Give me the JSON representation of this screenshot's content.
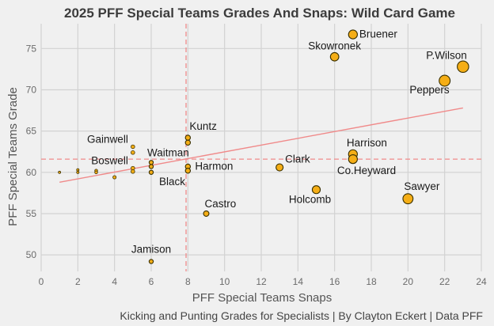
{
  "chart_data": {
    "type": "scatter",
    "title": "2025 PFF Special Teams Grades And Snaps: Wild Card Game",
    "xlabel": "PFF Special Teams Snaps",
    "ylabel": "PFF Special Teams Grade",
    "caption": "Kicking and Punting Grades for Specialists | By Clayton Eckert | Data PFF",
    "xlim": [
      0,
      24
    ],
    "ylim": [
      48,
      78
    ],
    "x_ticks": [
      0,
      2,
      4,
      6,
      8,
      10,
      12,
      14,
      16,
      18,
      20,
      22,
      24
    ],
    "y_ticks": [
      50,
      55,
      60,
      65,
      70,
      75
    ],
    "grid": true,
    "reference_lines": {
      "x": 7.9,
      "y": 61.6
    },
    "trend_line": {
      "x": [
        1,
        23
      ],
      "y": [
        58.8,
        67.8
      ]
    },
    "colors": {
      "background": "#f0f0f0",
      "grid": "#d2d2d2",
      "point_fill": "#f5ae16",
      "point_stroke": "#3a3000",
      "reference": "#f08a8a",
      "trend": "#f08a8a"
    },
    "points": [
      {
        "name": "Bruener",
        "x": 17,
        "y": 76.7,
        "label": "Bruener",
        "anchor": "start",
        "dx": 8,
        "dy": 4
      },
      {
        "name": "Skowronek",
        "x": 16,
        "y": 74.0,
        "label": "Skowronek",
        "anchor": "middle",
        "dx": 0,
        "dy": -9
      },
      {
        "name": "P.Wilson",
        "x": 23,
        "y": 72.8,
        "label": "P.Wilson",
        "anchor": "end",
        "dx": 5,
        "dy": -10
      },
      {
        "name": "Peppers",
        "x": 22,
        "y": 71.1,
        "label": "Peppers",
        "anchor": "end",
        "dx": 6,
        "dy": 16
      },
      {
        "name": "Kuntz",
        "x": 8,
        "y": 64.2,
        "label": "Kuntz",
        "anchor": "start",
        "dx": 2,
        "dy": -10
      },
      {
        "name": "Kuntz-2",
        "x": 8,
        "y": 63.6,
        "label": ""
      },
      {
        "name": "Gainwell",
        "x": 5,
        "y": 63.1,
        "label": "Gainwell",
        "anchor": "end",
        "dx": -6,
        "dy": -5
      },
      {
        "name": "Gainwell-2",
        "x": 5,
        "y": 62.4,
        "label": ""
      },
      {
        "name": "Waitman",
        "x": 6,
        "y": 61.2,
        "label": "Waitman",
        "anchor": "start",
        "dx": -5,
        "dy": -8
      },
      {
        "name": "Waitman-2",
        "x": 6,
        "y": 60.7,
        "label": ""
      },
      {
        "name": "Black",
        "x": 6,
        "y": 60.0,
        "label": "Black",
        "anchor": "start",
        "dx": 10,
        "dy": 16
      },
      {
        "name": "Harmon",
        "x": 8,
        "y": 60.7,
        "label": "Harmon",
        "anchor": "start",
        "dx": 9,
        "dy": 4
      },
      {
        "name": "Harmon-2",
        "x": 8,
        "y": 60.2,
        "label": ""
      },
      {
        "name": "Boswell",
        "x": 5,
        "y": 60.5,
        "label": "Boswell",
        "anchor": "end",
        "dx": -6,
        "dy": -5
      },
      {
        "name": "Boswell-2",
        "x": 5,
        "y": 60.1,
        "label": ""
      },
      {
        "name": "p-3-a",
        "x": 3,
        "y": 60.2,
        "label": ""
      },
      {
        "name": "p-3-b",
        "x": 3,
        "y": 60.0,
        "label": ""
      },
      {
        "name": "p-2-a",
        "x": 2,
        "y": 60.3,
        "label": ""
      },
      {
        "name": "p-2-b",
        "x": 2,
        "y": 60.0,
        "label": ""
      },
      {
        "name": "p-1",
        "x": 1,
        "y": 60.0,
        "label": ""
      },
      {
        "name": "p-4",
        "x": 4,
        "y": 59.4,
        "label": ""
      },
      {
        "name": "Castro",
        "x": 9,
        "y": 55.0,
        "label": "Castro",
        "anchor": "start",
        "dx": -2,
        "dy": -8
      },
      {
        "name": "Jamison",
        "x": 6,
        "y": 49.2,
        "label": "Jamison",
        "anchor": "middle",
        "dx": 0,
        "dy": -11
      },
      {
        "name": "Clark",
        "x": 13,
        "y": 60.6,
        "label": "Clark",
        "anchor": "start",
        "dx": 7,
        "dy": -6
      },
      {
        "name": "Harrison",
        "x": 17,
        "y": 62.2,
        "label": "Harrison",
        "anchor": "start",
        "dx": -8,
        "dy": -10
      },
      {
        "name": "Co.Heyward",
        "x": 17,
        "y": 61.6,
        "label": "Co.Heyward",
        "anchor": "start",
        "dx": -20,
        "dy": 19
      },
      {
        "name": "Holcomb",
        "x": 15,
        "y": 57.9,
        "label": "Holcomb",
        "anchor": "middle",
        "dx": -8,
        "dy": 17
      },
      {
        "name": "Sawyer",
        "x": 20,
        "y": 56.8,
        "label": "Sawyer",
        "anchor": "start",
        "dx": -5,
        "dy": -11
      }
    ]
  }
}
